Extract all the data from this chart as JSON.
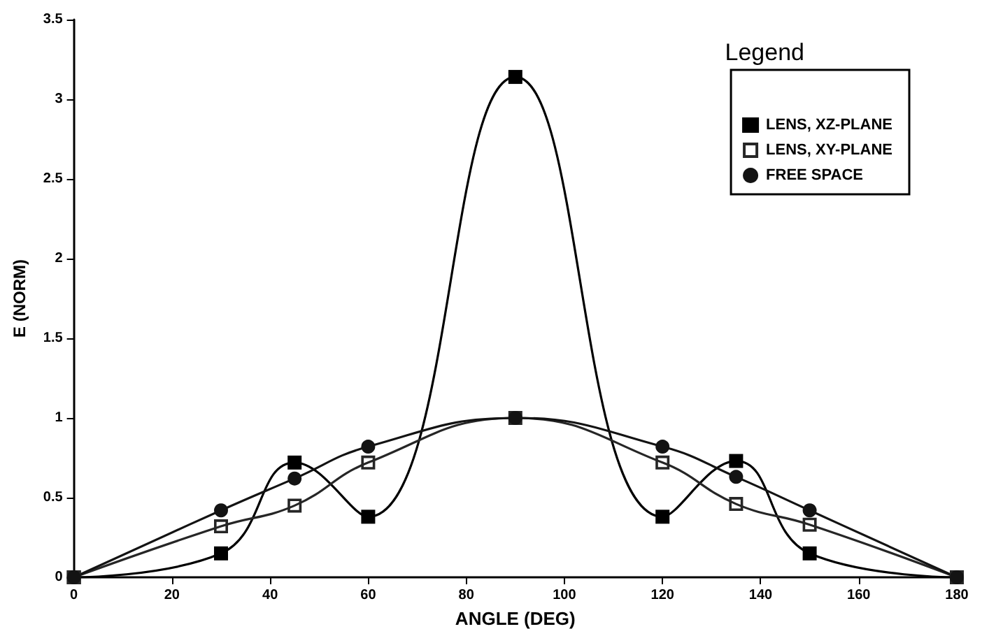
{
  "chart_data": {
    "type": "line",
    "xlabel": "ANGLE (DEG)",
    "ylabel": "E (NORM)",
    "legend_title": "Legend",
    "x": [
      0,
      30,
      45,
      60,
      90,
      120,
      135,
      150,
      180
    ],
    "series": [
      {
        "name": "LENS, XZ-PLANE",
        "color": "#000000",
        "marker": "square",
        "values": [
          0,
          0.15,
          0.72,
          0.38,
          3.14,
          0.38,
          0.73,
          0.15,
          0
        ]
      },
      {
        "name": "LENS, XY-PLANE",
        "color": "#262626",
        "marker": "square",
        "values": [
          0,
          0.32,
          0.45,
          0.72,
          1.0,
          0.72,
          0.46,
          0.33,
          0
        ]
      },
      {
        "name": "FREE SPACE",
        "color": "#131313",
        "marker": "circle",
        "values": [
          0,
          0.42,
          0.62,
          0.82,
          1.0,
          0.82,
          0.63,
          0.42,
          0
        ]
      }
    ],
    "xlim": [
      0,
      180
    ],
    "xticks": [
      0,
      20,
      40,
      60,
      80,
      100,
      120,
      140,
      160,
      180
    ],
    "ylim": [
      0,
      3.5
    ],
    "yticks": [
      0,
      0.5,
      1,
      1.5,
      2,
      2.5,
      3,
      3.5
    ],
    "grid": false,
    "legend": "top right"
  }
}
